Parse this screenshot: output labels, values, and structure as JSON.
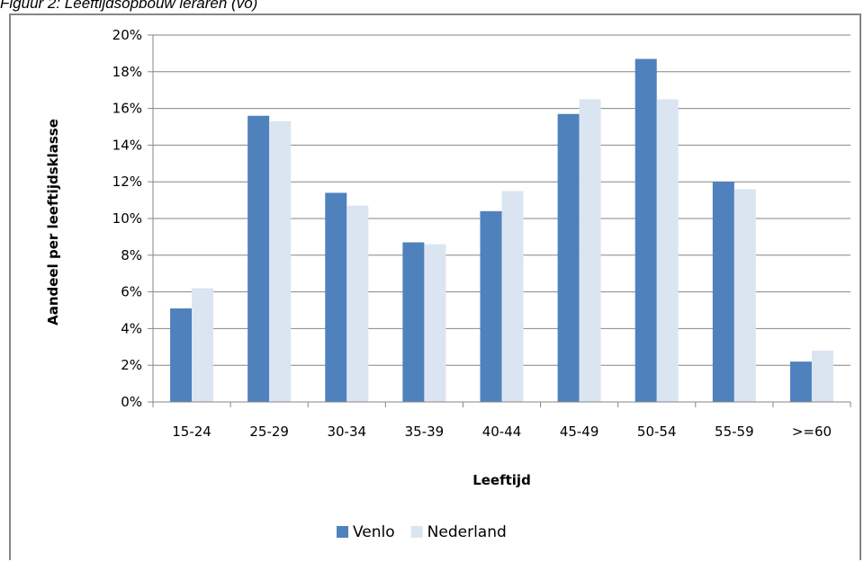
{
  "caption": "Figuur 2: Leeftijdsopbouw leraren (vo)",
  "chart_data": {
    "type": "bar",
    "title": "",
    "xlabel": "Leeftijd",
    "ylabel": "Aandeel per leeftijdsklasse",
    "categories": [
      "15-24",
      "25-29",
      "30-34",
      "35-39",
      "40-44",
      "45-49",
      "50-54",
      "55-59",
      ">=60"
    ],
    "series": [
      {
        "name": "Venlo",
        "color": "#4f81bd",
        "values": [
          5.1,
          15.6,
          11.4,
          8.7,
          10.4,
          15.7,
          18.7,
          12.0,
          2.2
        ]
      },
      {
        "name": "Nederland",
        "color": "#dbe5f1",
        "values": [
          6.2,
          15.3,
          10.7,
          8.6,
          11.5,
          16.5,
          16.5,
          11.6,
          2.8
        ]
      }
    ],
    "ylim": [
      0,
      20
    ],
    "y_ticks": [
      "0%",
      "2%",
      "4%",
      "6%",
      "8%",
      "10%",
      "12%",
      "14%",
      "16%",
      "18%",
      "20%"
    ],
    "grid": true,
    "legend_position": "bottom"
  }
}
